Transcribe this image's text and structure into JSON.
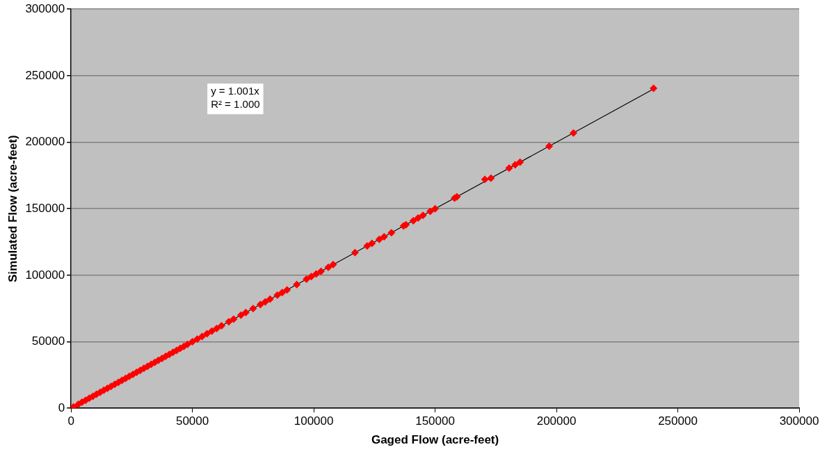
{
  "chart_data": {
    "type": "scatter",
    "xlabel": "Gaged Flow (acre-feet)",
    "ylabel": "Simulated Flow (acre-feet)",
    "xlim": [
      0,
      300000
    ],
    "xticks": [
      0,
      50000,
      100000,
      150000,
      200000,
      250000,
      300000
    ],
    "ylim": [
      0,
      300000
    ],
    "yticks": [
      0,
      50000,
      100000,
      150000,
      200000,
      250000,
      300000
    ],
    "grid": "y",
    "legend": false,
    "marker": "diamond",
    "annotations": [
      "y = 1.001x",
      "R² = 1.000"
    ],
    "series": [
      {
        "color": "#ff0000",
        "x": [
          1000,
          3000,
          4500,
          6000,
          7500,
          9000,
          10500,
          12000,
          13500,
          15000,
          16500,
          18000,
          19500,
          21000,
          22500,
          24000,
          25500,
          27000,
          28500,
          30000,
          31500,
          33000,
          34500,
          36000,
          37500,
          39000,
          40500,
          42000,
          43500,
          45000,
          46500,
          48000,
          50000,
          52000,
          54000,
          56000,
          58000,
          60000,
          62000,
          65000,
          67000,
          70000,
          72000,
          75000,
          78000,
          80000,
          82000,
          85000,
          87000,
          89000,
          93000,
          97000,
          99000,
          101000,
          103000,
          106000,
          108000,
          117000,
          122000,
          124000,
          127000,
          129000,
          132000,
          137000,
          138000,
          141000,
          143000,
          145000,
          148000,
          150000,
          158000,
          159000,
          170500,
          173000,
          180500,
          183000,
          185000,
          197000,
          207000,
          240000
        ],
        "values": [
          1000,
          3000,
          4500,
          6000,
          7500,
          9000,
          10500,
          12000,
          13500,
          15000,
          16500,
          18000,
          19500,
          21000,
          22500,
          24000,
          25500,
          27000,
          28500,
          30000,
          31500,
          33000,
          34500,
          36000,
          37500,
          39000,
          40500,
          42000,
          43500,
          45000,
          46500,
          48000,
          50000,
          52000,
          54000,
          56000,
          58000,
          60000,
          62000,
          65000,
          67000,
          70000,
          72000,
          75000,
          78000,
          80000,
          82000,
          85000,
          87000,
          89000,
          93000,
          97000,
          99000,
          101000,
          103000,
          106000,
          108000,
          117000,
          122000,
          124000,
          127000,
          129000,
          132000,
          137000,
          138000,
          141000,
          143000,
          145000,
          148000,
          150000,
          158000,
          159000,
          172000,
          173000,
          180500,
          183000,
          185000,
          197000,
          207000,
          240500
        ]
      },
      {
        "type": "line",
        "color": "#000000",
        "marker": "none",
        "x": [
          0,
          240000
        ],
        "values": [
          0,
          240000
        ]
      }
    ]
  }
}
